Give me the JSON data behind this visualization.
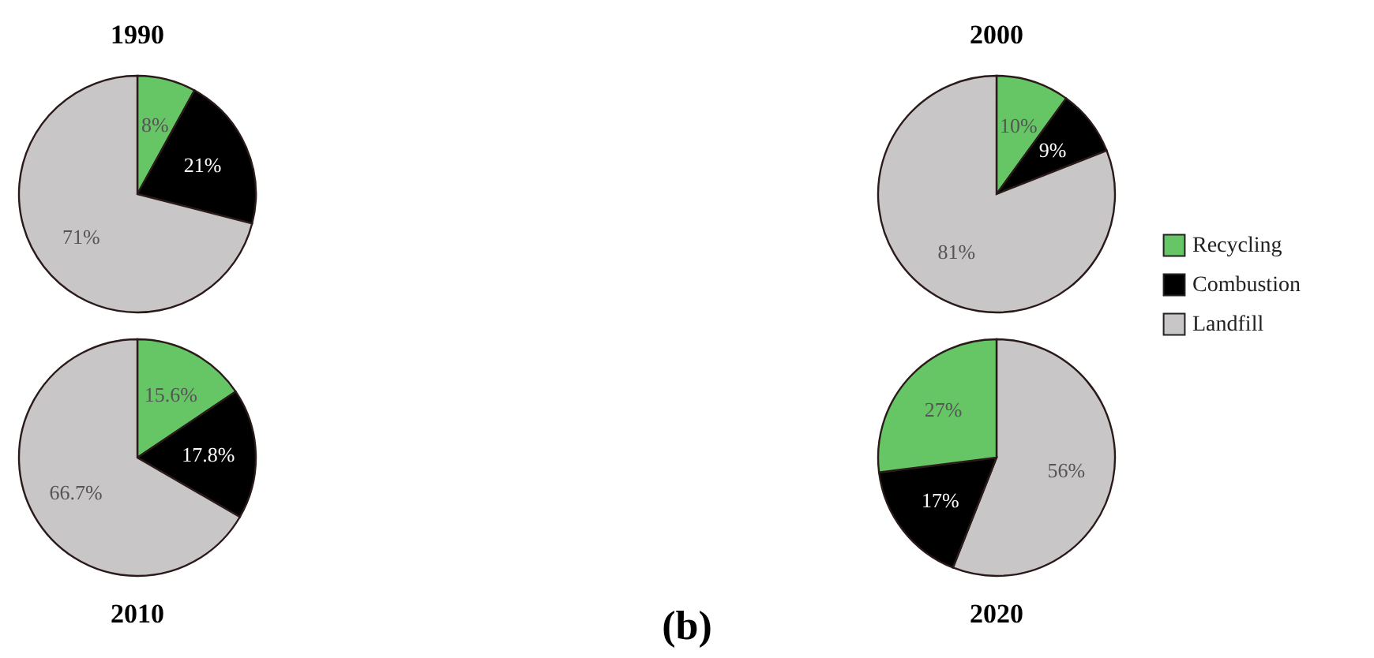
{
  "chart_data": [
    {
      "type": "pie",
      "title": "1990",
      "categories": [
        null,
        null,
        null
      ],
      "values": [
        8,
        21,
        71
      ],
      "colors": [
        "#66c666",
        "#000000",
        "#c8c6c6"
      ],
      "value_labels": [
        "8%",
        "21%",
        "71%"
      ]
    },
    {
      "type": "pie",
      "title": "2000",
      "categories": [
        "Recycling",
        "Combustion",
        "Landfill"
      ],
      "values": [
        10,
        9,
        81
      ],
      "colors": [
        "#66c666",
        "#000000",
        "#c8c6c6"
      ],
      "value_labels": [
        "10%",
        "9%",
        "81%"
      ],
      "legend": "right"
    },
    {
      "type": "pie",
      "title": "2010",
      "categories": [
        null,
        null,
        null
      ],
      "values": [
        15.6,
        17.8,
        66.7
      ],
      "colors": [
        "#66c666",
        "#000000",
        "#c8c6c6"
      ],
      "value_labels": [
        "15.6%",
        "17.8%",
        "66.7%"
      ]
    },
    {
      "type": "pie",
      "title": "2020",
      "categories": [
        null,
        null,
        null
      ],
      "values": [
        56,
        17,
        27
      ],
      "colors": [
        "#c8c6c6",
        "#000000",
        "#66c666"
      ],
      "value_labels": [
        "56%",
        "17%",
        "27%"
      ],
      "annotations": [
        "(b)"
      ]
    }
  ]
}
